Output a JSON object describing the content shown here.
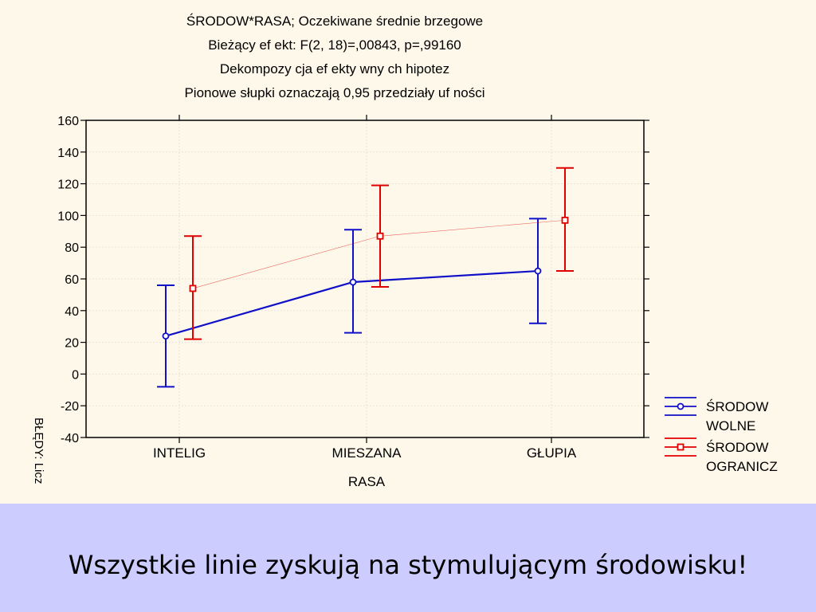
{
  "chart_data": {
    "type": "line",
    "title_lines": [
      "ŚRODOW*RASA; Oczekiwane średnie brzegowe",
      "Bieżący  ef ekt: F(2,  18)=,00843,  p=,99160",
      "Dekompozy cja  ef ekty wny ch hipotez",
      "Pionowe słupki oznaczają 0,95 przedziały  uf ności"
    ],
    "xlabel": "RASA",
    "side_label": "BŁĘDY: Licz",
    "categories": [
      "INTELIG",
      "MIESZANA",
      "GŁUPIA"
    ],
    "ylim": [
      -40,
      160
    ],
    "yticks": [
      -40,
      -20,
      0,
      20,
      40,
      60,
      80,
      100,
      120,
      140,
      160
    ],
    "grid": true,
    "legend_position": "right",
    "series": [
      {
        "name_lines": [
          "ŚRODOW",
          "WOLNE"
        ],
        "color": "#1010c8",
        "marker": "circle",
        "values": [
          24,
          58,
          65
        ],
        "ci_low": [
          -8,
          26,
          32
        ],
        "ci_high": [
          56,
          91,
          98
        ]
      },
      {
        "name_lines": [
          "ŚRODOW",
          "OGRANICZ"
        ],
        "color": "#e00000",
        "marker": "square",
        "values": [
          54,
          87,
          97
        ],
        "ci_low": [
          22,
          55,
          65
        ],
        "ci_high": [
          87,
          119,
          130
        ]
      }
    ]
  },
  "caption": "Wszystkie linie zyskują na stymulującym środowisku!"
}
